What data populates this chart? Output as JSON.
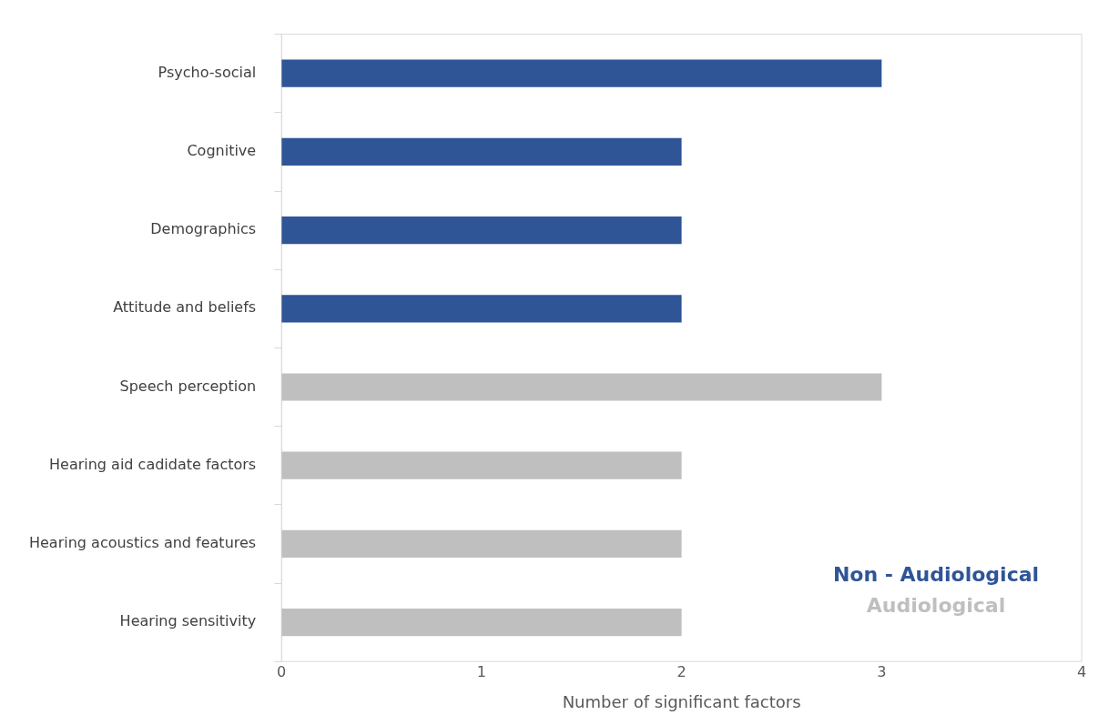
{
  "chart_data": {
    "type": "bar",
    "orientation": "horizontal",
    "stacked": true,
    "xlabel": "Number of significant factors",
    "categories": [
      "Psycho-social",
      "Cognitive",
      "Demographics",
      "Attitude and beliefs",
      "Speech perception",
      "Hearing aid cadidate factors",
      "Hearing acoustics and features",
      "Hearing sensitivity"
    ],
    "series": [
      {
        "name": "Non - Audiological",
        "color": "#2f5597",
        "values": [
          3,
          2,
          2,
          2,
          null,
          null,
          null,
          null
        ]
      },
      {
        "name": "Audiological",
        "color": "#bfbfbf",
        "values": [
          null,
          null,
          null,
          null,
          3,
          2,
          2,
          2
        ]
      }
    ],
    "xlim": [
      0,
      4
    ],
    "xticks": [
      0,
      1,
      2,
      3,
      4
    ],
    "grid": false,
    "legend": "bottom right"
  }
}
